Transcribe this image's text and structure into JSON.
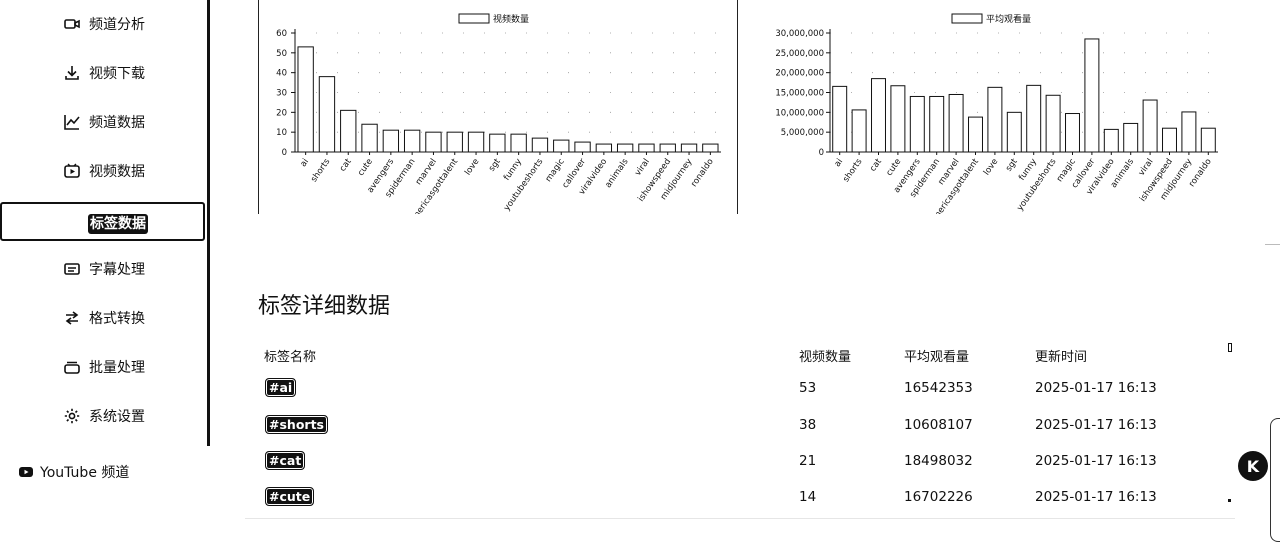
{
  "sidebar": {
    "items": [
      {
        "label": "频道分析",
        "icon": "video-camera-icon"
      },
      {
        "label": "视频下载",
        "icon": "download-icon"
      },
      {
        "label": "频道数据",
        "icon": "line-chart-icon"
      },
      {
        "label": "视频数据",
        "icon": "video-play-icon"
      },
      {
        "label": "标签数据",
        "icon": "",
        "active": true
      },
      {
        "label": "字幕处理",
        "icon": "subtitles-icon"
      },
      {
        "label": "格式转换",
        "icon": "swap-arrows-icon"
      },
      {
        "label": "批量处理",
        "icon": "layers-icon"
      },
      {
        "label": "系统设置",
        "icon": "gear-icon"
      }
    ],
    "youtube_label": "YouTube 频道"
  },
  "chart_data": [
    {
      "type": "bar",
      "legend": "视频数量",
      "categories": [
        "ai",
        "shorts",
        "cat",
        "cute",
        "avengers",
        "spiderman",
        "marvel",
        "americasgottalent",
        "love",
        "sgt",
        "funny",
        "youtubeshorts",
        "magic",
        "callover",
        "viralvideo",
        "animals",
        "viral",
        "ishowspeed",
        "midjourney",
        "ronaldo"
      ],
      "values": [
        53,
        38,
        21,
        14,
        11,
        11,
        10,
        10,
        10,
        9,
        9,
        7,
        6,
        5,
        4,
        4,
        4,
        4,
        4,
        4
      ],
      "ylim": [
        0,
        60
      ],
      "yticks": [
        0,
        10,
        20,
        30,
        40,
        50,
        60
      ],
      "ytick_labels": [
        "0",
        "10",
        "20",
        "30",
        "40",
        "50",
        "60"
      ],
      "grid": true,
      "legend_position": "top"
    },
    {
      "type": "bar",
      "legend": "平均观看量",
      "categories": [
        "ai",
        "shorts",
        "cat",
        "cute",
        "avengers",
        "spiderman",
        "marvel",
        "americasgottalent",
        "love",
        "sgt",
        "funny",
        "youtubeshorts",
        "magic",
        "callover",
        "viralvideo",
        "animals",
        "viral",
        "ishowspeed",
        "midjourney",
        "ronaldo"
      ],
      "values": [
        16542353,
        10608107,
        18498032,
        16702226,
        14000000,
        14000000,
        14500000,
        8800000,
        16300000,
        10000000,
        16800000,
        14300000,
        9700000,
        28500000,
        5700000,
        7200000,
        13100000,
        6000000,
        10100000,
        6000000
      ],
      "ylim": [
        0,
        30000000
      ],
      "yticks": [
        0,
        5000000,
        10000000,
        15000000,
        20000000,
        25000000,
        30000000
      ],
      "ytick_labels": [
        "0",
        "5,000,000",
        "10,000,000",
        "15,000,000",
        "20,000,000",
        "25,000,000",
        "30,000,000"
      ],
      "grid": true,
      "legend_position": "top"
    }
  ],
  "table": {
    "title": "标签详细数据",
    "headers": [
      "标签名称",
      "视频数量",
      "平均观看量",
      "更新时间"
    ],
    "rows": [
      {
        "tag": "#ai",
        "count": "53",
        "avg_views": "16542353",
        "updated": "2025-01-17 16:13"
      },
      {
        "tag": "#shorts",
        "count": "38",
        "avg_views": "10608107",
        "updated": "2025-01-17 16:13"
      },
      {
        "tag": "#cat",
        "count": "21",
        "avg_views": "18498032",
        "updated": "2025-01-17 16:13"
      },
      {
        "tag": "#cute",
        "count": "14",
        "avg_views": "16702226",
        "updated": "2025-01-17 16:13"
      }
    ]
  },
  "floating_button": {
    "label": "K",
    "icon": "assistant-logo-icon"
  }
}
